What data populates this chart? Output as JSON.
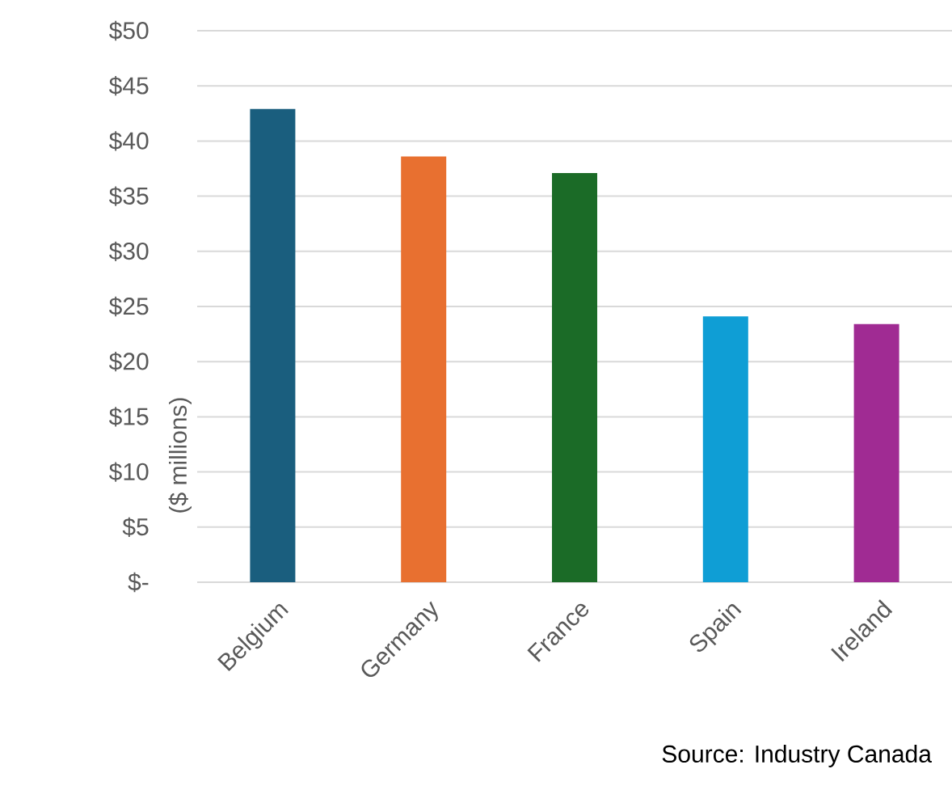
{
  "chart_data": {
    "type": "bar",
    "ylabel": "($ millions)",
    "categories": [
      "Belgium",
      "Germany",
      "France",
      "Spain",
      "Ireland"
    ],
    "values": [
      42.9,
      38.6,
      37.1,
      24.1,
      23.4
    ],
    "colors": [
      "#1a5e7e",
      "#e87030",
      "#1b6b27",
      "#0f9ed5",
      "#a02b93"
    ],
    "ylim": [
      0,
      50
    ],
    "yticks": [
      {
        "value": 0,
        "label": "$-"
      },
      {
        "value": 5,
        "label": "$5"
      },
      {
        "value": 10,
        "label": "$10"
      },
      {
        "value": 15,
        "label": "$15"
      },
      {
        "value": 20,
        "label": "$20"
      },
      {
        "value": 25,
        "label": "$25"
      },
      {
        "value": 30,
        "label": "$30"
      },
      {
        "value": 35,
        "label": "$35"
      },
      {
        "value": 40,
        "label": "$40"
      },
      {
        "value": 45,
        "label": "$45"
      },
      {
        "value": 50,
        "label": "$50"
      }
    ],
    "grid": "y",
    "annotations": [
      "Source: Industry Canada"
    ]
  }
}
